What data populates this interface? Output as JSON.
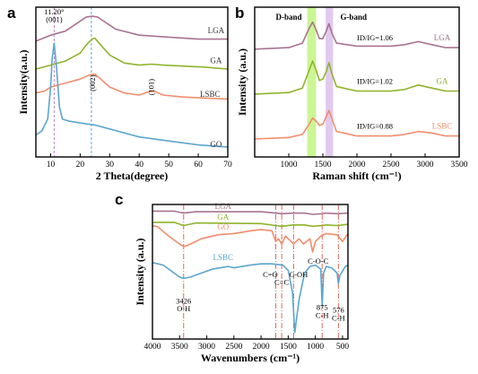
{
  "chart_data": [
    {
      "panel": "a",
      "type": "line",
      "xlabel": "2 Theta(degree)",
      "ylabel": "Intensity(a.u.)",
      "xlim": [
        5,
        70
      ],
      "xticks": [
        10,
        20,
        30,
        40,
        50,
        60,
        70
      ],
      "grid": false,
      "series": [
        {
          "name": "LGA",
          "color": "#a8738f",
          "label_x": 66,
          "label_y": 0.87,
          "x": [
            5,
            10,
            15,
            20,
            22,
            24,
            26,
            28,
            32,
            40,
            50,
            60,
            70
          ],
          "y": [
            0.83,
            0.86,
            0.88,
            0.93,
            0.95,
            0.955,
            0.95,
            0.93,
            0.89,
            0.86,
            0.85,
            0.84,
            0.84
          ]
        },
        {
          "name": "GA",
          "color": "#8fb32a",
          "label_x": 66,
          "label_y": 0.72,
          "x": [
            5,
            10,
            15,
            20,
            22,
            24,
            25,
            27,
            30,
            35,
            40,
            44,
            48,
            55,
            62,
            70
          ],
          "y": [
            0.69,
            0.71,
            0.73,
            0.77,
            0.81,
            0.84,
            0.845,
            0.81,
            0.76,
            0.72,
            0.71,
            0.715,
            0.71,
            0.705,
            0.7,
            0.69
          ]
        },
        {
          "name": "LSBC",
          "color": "#f28d6c",
          "label_x": 64,
          "label_y": 0.55,
          "x": [
            5,
            8,
            10,
            15,
            20,
            23,
            25,
            27,
            30,
            35,
            40,
            43,
            45,
            48,
            55,
            62,
            70
          ],
          "y": [
            0.57,
            0.58,
            0.6,
            0.62,
            0.64,
            0.66,
            0.665,
            0.64,
            0.6,
            0.57,
            0.56,
            0.575,
            0.58,
            0.56,
            0.55,
            0.545,
            0.54
          ]
        },
        {
          "name": "GO",
          "color": "#5ba6cf",
          "label_x": 66,
          "label_y": 0.3,
          "x": [
            5,
            7,
            9,
            10,
            10.5,
            11.2,
            12,
            13,
            14,
            16,
            20,
            25,
            30,
            40,
            50,
            60,
            70
          ],
          "y": [
            0.36,
            0.38,
            0.44,
            0.6,
            0.74,
            0.82,
            0.7,
            0.5,
            0.44,
            0.43,
            0.42,
            0.41,
            0.39,
            0.35,
            0.33,
            0.31,
            0.3
          ]
        }
      ],
      "vlines": [
        {
          "x": 11.2,
          "color": "#c084c9"
        },
        {
          "x": 23.8,
          "color": "#5aa7e0"
        }
      ],
      "annotations": [
        {
          "text": "11.20°",
          "x": 11.2,
          "y": 0.965
        },
        {
          "text": "(001)",
          "x": 11.2,
          "y": 0.925
        },
        {
          "text": "(002)",
          "x": 25,
          "y": 0.62,
          "rotate": -90
        },
        {
          "text": "(101)",
          "x": 45,
          "y": 0.6,
          "rotate": -90
        }
      ]
    },
    {
      "panel": "b",
      "type": "line",
      "xlabel": "Raman shift (cm⁻¹)",
      "ylabel": "Intensity (a.u.)",
      "xlim": [
        500,
        3500
      ],
      "xticks": [
        1000,
        1500,
        2000,
        2500,
        3000,
        3500
      ],
      "grid": false,
      "bands": [
        {
          "label": "D-band",
          "x0": 1270,
          "x1": 1400,
          "color": "#bff27a"
        },
        {
          "label": "G-band",
          "x0": 1540,
          "x1": 1650,
          "color": "#d8bdea"
        }
      ],
      "series": [
        {
          "name": "LGA",
          "color": "#a8738f",
          "ratio": "ID/IG=1.06",
          "x": [
            500,
            1000,
            1200,
            1300,
            1350,
            1400,
            1450,
            1500,
            1550,
            1590,
            1630,
            1700,
            2000,
            2500,
            2700,
            2900,
            3100,
            3300,
            3500
          ],
          "y": [
            0.72,
            0.73,
            0.76,
            0.86,
            0.9,
            0.85,
            0.79,
            0.79,
            0.84,
            0.89,
            0.83,
            0.76,
            0.74,
            0.74,
            0.75,
            0.77,
            0.75,
            0.73,
            0.73
          ]
        },
        {
          "name": "GA",
          "color": "#8fb32a",
          "ratio": "ID/IG=1.02",
          "x": [
            500,
            1000,
            1200,
            1300,
            1350,
            1400,
            1450,
            1500,
            1550,
            1590,
            1630,
            1700,
            2000,
            2500,
            2700,
            2900,
            3100,
            3300,
            3500
          ],
          "y": [
            0.42,
            0.43,
            0.46,
            0.58,
            0.64,
            0.58,
            0.51,
            0.52,
            0.57,
            0.63,
            0.56,
            0.47,
            0.44,
            0.44,
            0.45,
            0.48,
            0.46,
            0.44,
            0.44
          ]
        },
        {
          "name": "LSBC",
          "color": "#f28d6c",
          "ratio": "ID/IG=0.88",
          "x": [
            500,
            1000,
            1200,
            1300,
            1350,
            1400,
            1450,
            1500,
            1550,
            1590,
            1630,
            1700,
            2000,
            2500,
            2700,
            2900,
            3100,
            3300,
            3500
          ],
          "y": [
            0.12,
            0.13,
            0.15,
            0.22,
            0.26,
            0.24,
            0.21,
            0.22,
            0.27,
            0.31,
            0.26,
            0.17,
            0.14,
            0.14,
            0.15,
            0.17,
            0.16,
            0.14,
            0.14
          ]
        }
      ]
    },
    {
      "panel": "c",
      "type": "line",
      "xlabel": "Wavenumbers (cm⁻¹)",
      "ylabel": "Intensity (a.u.)",
      "xlim": [
        4000,
        400
      ],
      "xticks": [
        4000,
        3500,
        3000,
        2500,
        2000,
        1500,
        1000,
        500
      ],
      "grid": false,
      "series": [
        {
          "name": "LGA",
          "color": "#a8738f",
          "x": [
            4000,
            3600,
            3426,
            3200,
            2000,
            1730,
            1620,
            1400,
            1200,
            1050,
            875,
            800,
            600,
            400
          ],
          "y": [
            0.97,
            0.97,
            0.955,
            0.965,
            0.965,
            0.955,
            0.95,
            0.955,
            0.955,
            0.945,
            0.95,
            0.955,
            0.95,
            0.955
          ]
        },
        {
          "name": "GA",
          "color": "#8fb32a",
          "x": [
            4000,
            3600,
            3426,
            3200,
            2000,
            1730,
            1620,
            1400,
            1200,
            1050,
            875,
            800,
            600,
            400
          ],
          "y": [
            0.885,
            0.885,
            0.86,
            0.88,
            0.875,
            0.86,
            0.855,
            0.865,
            0.865,
            0.855,
            0.86,
            0.865,
            0.86,
            0.87
          ]
        },
        {
          "name": "GO",
          "color": "#f28d6c",
          "x": [
            4000,
            3900,
            3700,
            3500,
            3426,
            3300,
            3100,
            2800,
            2500,
            2200,
            2000,
            1800,
            1730,
            1680,
            1620,
            1550,
            1400,
            1300,
            1220,
            1100,
            1050,
            1000,
            900,
            800,
            600,
            500,
            400
          ],
          "y": [
            0.86,
            0.85,
            0.78,
            0.72,
            0.7,
            0.72,
            0.76,
            0.79,
            0.8,
            0.82,
            0.83,
            0.82,
            0.74,
            0.76,
            0.72,
            0.78,
            0.72,
            0.76,
            0.72,
            0.76,
            0.66,
            0.74,
            0.78,
            0.8,
            0.79,
            0.74,
            0.8
          ]
        },
        {
          "name": "LSBC",
          "color": "#5ba6cf",
          "x": [
            4000,
            3800,
            3600,
            3500,
            3426,
            3300,
            3100,
            2900,
            2600,
            2500,
            2200,
            2000,
            1800,
            1600,
            1500,
            1420,
            1380,
            1300,
            1200,
            1100,
            1000,
            900,
            875,
            850,
            800,
            700,
            600,
            576,
            550,
            450,
            400
          ],
          "y": [
            0.58,
            0.56,
            0.5,
            0.47,
            0.46,
            0.47,
            0.5,
            0.53,
            0.55,
            0.54,
            0.56,
            0.57,
            0.57,
            0.56,
            0.52,
            0.35,
            0.05,
            0.3,
            0.5,
            0.55,
            0.56,
            0.53,
            0.25,
            0.5,
            0.55,
            0.54,
            0.5,
            0.42,
            0.48,
            0.55,
            0.56
          ]
        }
      ],
      "vlines": [
        {
          "x": 3426,
          "color": "#e06a5a"
        },
        {
          "x": 1730,
          "color": "#e06a5a"
        },
        {
          "x": 1620,
          "color": "#e06a5a"
        },
        {
          "x": 1400,
          "color": "#e06a5a"
        },
        {
          "x": 875,
          "color": "#e06a5a"
        },
        {
          "x": 576,
          "color": "#e06a5a"
        }
      ],
      "annotations": [
        {
          "text": "3426",
          "x": 3426,
          "y": 0.27
        },
        {
          "text": "O-H",
          "x": 3426,
          "y": 0.21
        },
        {
          "text": "C=O",
          "x": 1830,
          "y": 0.47
        },
        {
          "text": "C=C",
          "x": 1620,
          "y": 0.41
        },
        {
          "text": "C-OH",
          "x": 1310,
          "y": 0.47
        },
        {
          "text": "C-O-C",
          "x": 950,
          "y": 0.57
        },
        {
          "text": "875",
          "x": 875,
          "y": 0.22
        },
        {
          "text": "C-H",
          "x": 875,
          "y": 0.16
        },
        {
          "text": "576",
          "x": 576,
          "y": 0.2
        },
        {
          "text": "C-H",
          "x": 576,
          "y": 0.14
        }
      ]
    }
  ]
}
